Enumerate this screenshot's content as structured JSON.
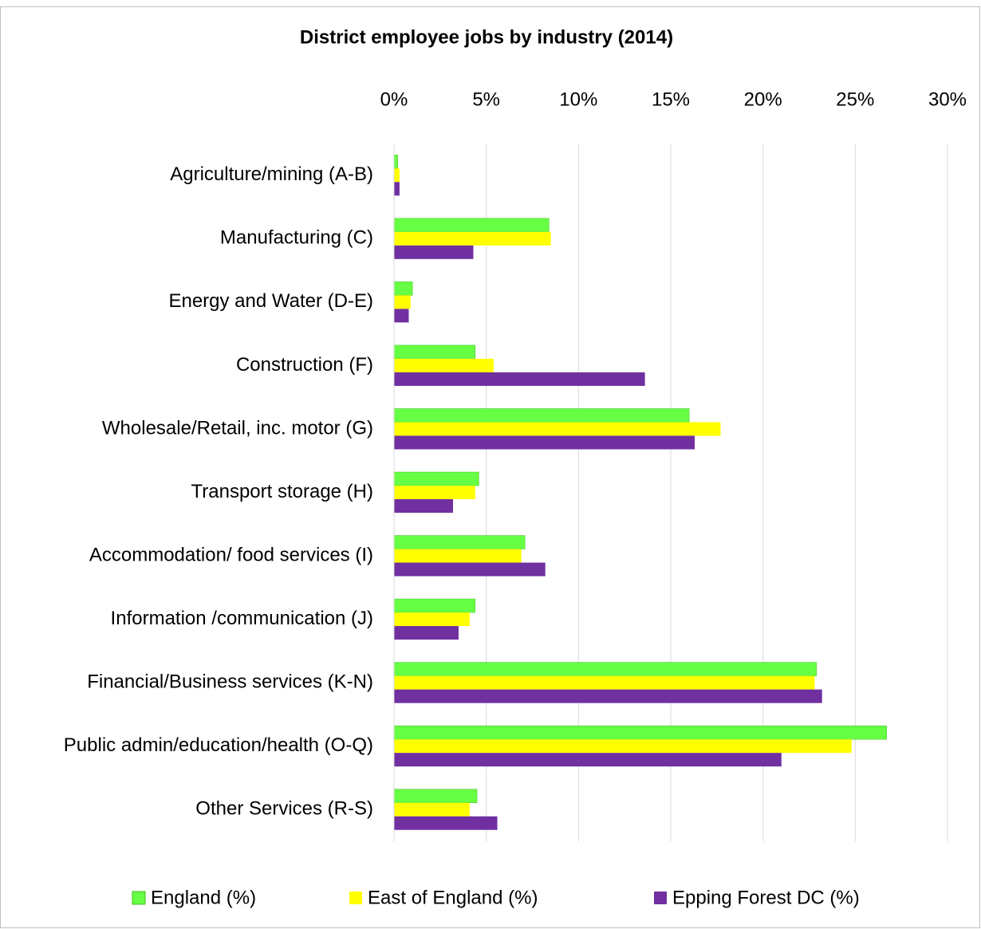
{
  "chart_data": {
    "type": "bar",
    "orientation": "horizontal",
    "title": "District employee jobs by industry (2014)",
    "categories": [
      "Agriculture/mining (A-B)",
      "Manufacturing (C)",
      "Energy and Water (D-E)",
      "Construction (F)",
      "Wholesale/Retail, inc. motor (G)",
      "Transport storage (H)",
      "Accommodation/ food services (I)",
      "Information /communication (J)",
      "Financial/Business services (K-N)",
      "Public admin/education/health (O-Q)",
      "Other Services (R-S)"
    ],
    "series": [
      {
        "name": "England (%)",
        "color": "#66ff44",
        "values": [
          0.2,
          8.4,
          1.0,
          4.4,
          16.0,
          4.6,
          7.1,
          4.4,
          22.9,
          26.7,
          4.5
        ]
      },
      {
        "name": "East of England (%)",
        "color": "#ffff00",
        "values": [
          0.3,
          8.5,
          0.9,
          5.4,
          17.7,
          4.4,
          6.9,
          4.1,
          22.8,
          24.8,
          4.1
        ]
      },
      {
        "name": "Epping Forest DC (%)",
        "color": "#7030a0",
        "values": [
          0.3,
          4.3,
          0.8,
          13.6,
          16.3,
          3.2,
          8.2,
          3.5,
          23.2,
          21.0,
          5.6
        ]
      }
    ],
    "xlim": [
      0,
      30
    ],
    "xticks": [
      {
        "value": 0,
        "label": "0%"
      },
      {
        "value": 5,
        "label": "5%"
      },
      {
        "value": 10,
        "label": "10%"
      },
      {
        "value": 15,
        "label": "15%"
      },
      {
        "value": 20,
        "label": "20%"
      },
      {
        "value": 25,
        "label": "25%"
      },
      {
        "value": 30,
        "label": "30%"
      }
    ],
    "grid": true,
    "legend": "bottom"
  }
}
